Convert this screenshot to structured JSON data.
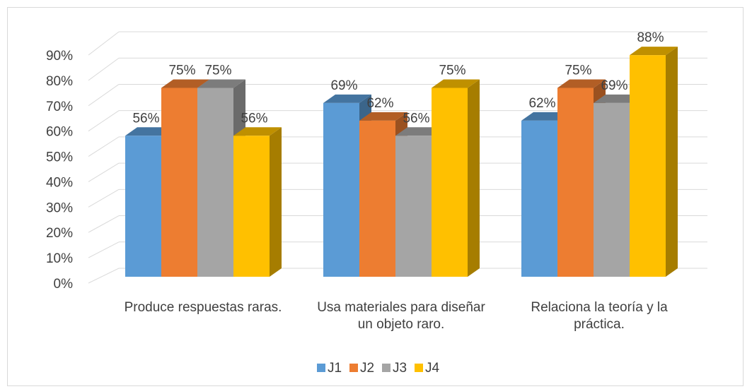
{
  "chart_data": {
    "type": "bar3d",
    "categories": [
      "Produce respuestas raras.",
      "Usa materiales para diseñar un objeto raro.",
      "Relaciona la teoría y la práctica."
    ],
    "series": [
      {
        "name": "J1",
        "color": "#5b9bd5",
        "values": [
          56,
          69,
          62
        ],
        "value_labels": [
          "56%",
          "69%",
          "62%"
        ]
      },
      {
        "name": "J2",
        "color": "#ed7d31",
        "values": [
          75,
          62,
          75
        ],
        "value_labels": [
          "75%",
          "62%",
          "75%"
        ]
      },
      {
        "name": "J3",
        "color": "#a5a5a5",
        "values": [
          75,
          56,
          69
        ],
        "value_labels": [
          "75%",
          "56%",
          "69%"
        ]
      },
      {
        "name": "J4",
        "color": "#ffc000",
        "values": [
          56,
          75,
          88
        ],
        "value_labels": [
          "56%",
          "75%",
          "88%"
        ]
      }
    ],
    "ylim": [
      0,
      90
    ],
    "yticks": [
      {
        "value": 0,
        "label": "0%"
      },
      {
        "value": 10,
        "label": "10%"
      },
      {
        "value": 20,
        "label": "20%"
      },
      {
        "value": 30,
        "label": "30%"
      },
      {
        "value": 40,
        "label": "40%"
      },
      {
        "value": 50,
        "label": "50%"
      },
      {
        "value": 60,
        "label": "60%"
      },
      {
        "value": 70,
        "label": "70%"
      },
      {
        "value": 80,
        "label": "80%"
      },
      {
        "value": 90,
        "label": "90%"
      }
    ],
    "grid": true,
    "legend": "bottom"
  }
}
